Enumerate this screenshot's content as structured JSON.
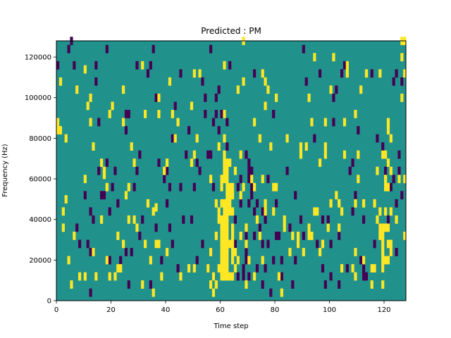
{
  "chart_data": {
    "type": "heatmap",
    "title": "Predicted : PM",
    "xlabel": "Time step",
    "ylabel": "Frequency (Hz)",
    "xlim": [
      0,
      128
    ],
    "ylim": [
      0,
      128000
    ],
    "x_ticks": [
      0,
      20,
      40,
      60,
      80,
      100,
      120
    ],
    "y_ticks": [
      0,
      20000,
      40000,
      60000,
      80000,
      100000,
      120000
    ],
    "grid": false,
    "cell_width": 1,
    "cell_height": 4000,
    "colors": {
      "background": "#21918c",
      "low": "#440154",
      "high": "#fde725"
    },
    "cells_high": [
      [
        0,
        86
      ],
      [
        0,
        82
      ],
      [
        1,
        82
      ],
      [
        1,
        106
      ],
      [
        2,
        34
      ],
      [
        2,
        42
      ],
      [
        3,
        48
      ],
      [
        3,
        78
      ],
      [
        4,
        18
      ],
      [
        5,
        6
      ],
      [
        6,
        30
      ],
      [
        7,
        102
      ],
      [
        8,
        10
      ],
      [
        10,
        10
      ],
      [
        10,
        112
      ],
      [
        10,
        58
      ],
      [
        11,
        94
      ],
      [
        12,
        98
      ],
      [
        12,
        86
      ],
      [
        13,
        74
      ],
      [
        13,
        22
      ],
      [
        14,
        10
      ],
      [
        16,
        38
      ],
      [
        16,
        66
      ],
      [
        17,
        60
      ],
      [
        17,
        62
      ],
      [
        18,
        54
      ],
      [
        18,
        18
      ],
      [
        19,
        10
      ],
      [
        19,
        90
      ],
      [
        20,
        94
      ],
      [
        21,
        10
      ],
      [
        22,
        14
      ],
      [
        22,
        30
      ],
      [
        23,
        14
      ],
      [
        24,
        102
      ],
      [
        24,
        86
      ],
      [
        24,
        26
      ],
      [
        25,
        50
      ],
      [
        26,
        38
      ],
      [
        26,
        54
      ],
      [
        27,
        74
      ],
      [
        28,
        66
      ],
      [
        28,
        38
      ],
      [
        29,
        34
      ],
      [
        31,
        6
      ],
      [
        31,
        114
      ],
      [
        32,
        26
      ],
      [
        32,
        90
      ],
      [
        33,
        46
      ],
      [
        34,
        18
      ],
      [
        35,
        2
      ],
      [
        35,
        42
      ],
      [
        36,
        26
      ],
      [
        36,
        44
      ],
      [
        37,
        90
      ],
      [
        37,
        26
      ],
      [
        37,
        98
      ],
      [
        38,
        10
      ],
      [
        39,
        62
      ],
      [
        40,
        66
      ],
      [
        40,
        22
      ],
      [
        41,
        106
      ],
      [
        42,
        90
      ],
      [
        43,
        78
      ],
      [
        44,
        86
      ],
      [
        45,
        10
      ],
      [
        48,
        14
      ],
      [
        49,
        66
      ],
      [
        49,
        94
      ],
      [
        50,
        110
      ],
      [
        50,
        70
      ],
      [
        50,
        14
      ],
      [
        51,
        78
      ],
      [
        52,
        110
      ],
      [
        55,
        14
      ],
      [
        56,
        58
      ],
      [
        56,
        22
      ],
      [
        56,
        6
      ],
      [
        57,
        2
      ],
      [
        57,
        10
      ],
      [
        58,
        30
      ],
      [
        58,
        6
      ],
      [
        58,
        46
      ],
      [
        59,
        14
      ],
      [
        59,
        74
      ],
      [
        59,
        42
      ],
      [
        59,
        38
      ],
      [
        60,
        34
      ],
      [
        60,
        46
      ],
      [
        60,
        54
      ],
      [
        60,
        58
      ],
      [
        60,
        38
      ],
      [
        60,
        18
      ],
      [
        60,
        14
      ],
      [
        60,
        10
      ],
      [
        60,
        22
      ],
      [
        60,
        26
      ],
      [
        60,
        30
      ],
      [
        61,
        34
      ],
      [
        61,
        38
      ],
      [
        61,
        42
      ],
      [
        61,
        46
      ],
      [
        61,
        58
      ],
      [
        61,
        62
      ],
      [
        61,
        66
      ],
      [
        61,
        70
      ],
      [
        61,
        78
      ],
      [
        61,
        90
      ],
      [
        61,
        114
      ],
      [
        61,
        10
      ],
      [
        61,
        14
      ],
      [
        61,
        18
      ],
      [
        61,
        22
      ],
      [
        61,
        26
      ],
      [
        61,
        30
      ],
      [
        62,
        50
      ],
      [
        62,
        54
      ],
      [
        62,
        58
      ],
      [
        62,
        62
      ],
      [
        62,
        66
      ],
      [
        62,
        10
      ],
      [
        62,
        14
      ],
      [
        62,
        18
      ],
      [
        62,
        22
      ],
      [
        62,
        26
      ],
      [
        62,
        30
      ],
      [
        62,
        34
      ],
      [
        62,
        38
      ],
      [
        62,
        42
      ],
      [
        62,
        46
      ],
      [
        63,
        50
      ],
      [
        63,
        54
      ],
      [
        63,
        66
      ],
      [
        63,
        10
      ],
      [
        63,
        26
      ],
      [
        63,
        42
      ],
      [
        63,
        46
      ],
      [
        64,
        10
      ],
      [
        64,
        18
      ],
      [
        64,
        22
      ],
      [
        64,
        26
      ],
      [
        64,
        30
      ],
      [
        64,
        42
      ],
      [
        64,
        50
      ],
      [
        64,
        54
      ],
      [
        64,
        34
      ],
      [
        65,
        14
      ],
      [
        65,
        22
      ],
      [
        65,
        62
      ],
      [
        66,
        18
      ],
      [
        66,
        102
      ],
      [
        67,
        30
      ],
      [
        67,
        50
      ],
      [
        67,
        70
      ],
      [
        68,
        126
      ],
      [
        68,
        106
      ],
      [
        68,
        54
      ],
      [
        69,
        6
      ],
      [
        69,
        26
      ],
      [
        69,
        34
      ],
      [
        70,
        18
      ],
      [
        71,
        58
      ],
      [
        72,
        86
      ],
      [
        72,
        10
      ],
      [
        72,
        54
      ],
      [
        73,
        38
      ],
      [
        74,
        30
      ],
      [
        74,
        78
      ],
      [
        75,
        58
      ],
      [
        75,
        18
      ],
      [
        75,
        110
      ],
      [
        76,
        106
      ],
      [
        76,
        94
      ],
      [
        76,
        46
      ],
      [
        76,
        42
      ],
      [
        77,
        102
      ],
      [
        78,
        74
      ],
      [
        79,
        54
      ],
      [
        79,
        42
      ],
      [
        80,
        54
      ],
      [
        80,
        98
      ],
      [
        81,
        10
      ],
      [
        82,
        2
      ],
      [
        83,
        34
      ],
      [
        83,
        38
      ],
      [
        84,
        78
      ],
      [
        85,
        22
      ],
      [
        86,
        30
      ],
      [
        88,
        30
      ],
      [
        88,
        26
      ],
      [
        89,
        70
      ],
      [
        89,
        74
      ],
      [
        90,
        22
      ],
      [
        91,
        74
      ],
      [
        92,
        98
      ],
      [
        92,
        34
      ],
      [
        92,
        30
      ],
      [
        93,
        30
      ],
      [
        93,
        86
      ],
      [
        94,
        42
      ],
      [
        94,
        118
      ],
      [
        95,
        42
      ],
      [
        96,
        66
      ],
      [
        96,
        22
      ],
      [
        97,
        26
      ],
      [
        98,
        86
      ],
      [
        98,
        70
      ],
      [
        98,
        74
      ],
      [
        99,
        34
      ],
      [
        100,
        102
      ],
      [
        100,
        46
      ],
      [
        101,
        118
      ],
      [
        102,
        50
      ],
      [
        103,
        46
      ],
      [
        103,
        34
      ],
      [
        104,
        14
      ],
      [
        104,
        42
      ],
      [
        105,
        86
      ],
      [
        105,
        70
      ],
      [
        106,
        114
      ],
      [
        106,
        110
      ],
      [
        108,
        14
      ],
      [
        109,
        90
      ],
      [
        109,
        10
      ],
      [
        109,
        46
      ],
      [
        109,
        22
      ],
      [
        110,
        70
      ],
      [
        110,
        58
      ],
      [
        111,
        102
      ],
      [
        112,
        46
      ],
      [
        112,
        18
      ],
      [
        113,
        110
      ],
      [
        115,
        6
      ],
      [
        115,
        14
      ],
      [
        116,
        14
      ],
      [
        116,
        46
      ],
      [
        117,
        38
      ],
      [
        117,
        62
      ],
      [
        118,
        30
      ],
      [
        118,
        42
      ],
      [
        118,
        34
      ],
      [
        118,
        110
      ],
      [
        119,
        6
      ],
      [
        119,
        14
      ],
      [
        119,
        18
      ],
      [
        119,
        22
      ],
      [
        119,
        26
      ],
      [
        119,
        30
      ],
      [
        119,
        34
      ],
      [
        119,
        70
      ],
      [
        120,
        70
      ],
      [
        120,
        54
      ],
      [
        120,
        42
      ],
      [
        120,
        34
      ],
      [
        120,
        18
      ],
      [
        120,
        58
      ],
      [
        121,
        86
      ],
      [
        121,
        54
      ],
      [
        121,
        82
      ],
      [
        121,
        66
      ],
      [
        121,
        18
      ],
      [
        121,
        26
      ],
      [
        121,
        34
      ],
      [
        122,
        22
      ],
      [
        122,
        26
      ],
      [
        122,
        42
      ],
      [
        122,
        62
      ],
      [
        122,
        78
      ],
      [
        124,
        38
      ],
      [
        125,
        58
      ],
      [
        126,
        118
      ],
      [
        126,
        126
      ],
      [
        126,
        98
      ],
      [
        127,
        126
      ],
      [
        127,
        110
      ],
      [
        127,
        30
      ],
      [
        127,
        58
      ]
    ],
    "cells_low": [
      [
        0,
        114
      ],
      [
        4,
        122
      ],
      [
        5,
        126
      ],
      [
        6,
        114
      ],
      [
        7,
        34
      ],
      [
        8,
        26
      ],
      [
        10,
        50
      ],
      [
        11,
        26
      ],
      [
        12,
        22
      ],
      [
        12,
        2
      ],
      [
        12,
        42
      ],
      [
        13,
        38
      ],
      [
        14,
        114
      ],
      [
        14,
        106
      ],
      [
        15,
        86
      ],
      [
        15,
        62
      ],
      [
        16,
        50
      ],
      [
        17,
        50
      ],
      [
        18,
        122
      ],
      [
        18,
        66
      ],
      [
        19,
        42
      ],
      [
        19,
        18
      ],
      [
        20,
        54
      ],
      [
        21,
        62
      ],
      [
        22,
        46
      ],
      [
        23,
        18
      ],
      [
        25,
        82
      ],
      [
        25,
        90
      ],
      [
        26,
        90
      ],
      [
        26,
        6
      ],
      [
        27,
        22
      ],
      [
        28,
        54
      ],
      [
        29,
        114
      ],
      [
        29,
        62
      ],
      [
        30,
        70
      ],
      [
        30,
        30
      ],
      [
        31,
        38
      ],
      [
        33,
        110
      ],
      [
        34,
        6
      ],
      [
        34,
        114
      ],
      [
        35,
        122
      ],
      [
        36,
        34
      ],
      [
        36,
        26
      ],
      [
        37,
        66
      ],
      [
        37,
        98
      ],
      [
        38,
        18
      ],
      [
        39,
        58
      ],
      [
        40,
        46
      ],
      [
        40,
        62
      ],
      [
        41,
        54
      ],
      [
        41,
        34
      ],
      [
        42,
        26
      ],
      [
        42,
        78
      ],
      [
        43,
        94
      ],
      [
        44,
        14
      ],
      [
        45,
        110
      ],
      [
        45,
        54
      ],
      [
        46,
        38
      ],
      [
        47,
        70
      ],
      [
        48,
        82
      ],
      [
        49,
        38
      ],
      [
        50,
        54
      ],
      [
        51,
        18
      ],
      [
        52,
        62
      ],
      [
        53,
        26
      ],
      [
        53,
        106
      ],
      [
        54,
        90
      ],
      [
        54,
        98
      ],
      [
        55,
        14
      ],
      [
        55,
        70
      ],
      [
        56,
        122
      ],
      [
        56,
        70
      ],
      [
        56,
        22
      ],
      [
        57,
        10
      ],
      [
        57,
        54
      ],
      [
        57,
        86
      ],
      [
        58,
        90
      ],
      [
        58,
        98
      ],
      [
        59,
        82
      ],
      [
        59,
        102
      ],
      [
        60,
        90
      ],
      [
        61,
        18
      ],
      [
        62,
        86
      ],
      [
        62,
        74
      ],
      [
        63,
        42
      ],
      [
        63,
        114
      ],
      [
        64,
        10
      ],
      [
        64,
        22
      ],
      [
        65,
        38
      ],
      [
        65,
        26
      ],
      [
        66,
        10
      ],
      [
        66,
        54
      ],
      [
        67,
        46
      ],
      [
        67,
        58
      ],
      [
        68,
        10
      ],
      [
        68,
        14
      ],
      [
        69,
        18
      ],
      [
        69,
        22
      ],
      [
        69,
        30
      ],
      [
        69,
        70
      ],
      [
        70,
        10
      ],
      [
        70,
        58
      ],
      [
        70,
        62
      ],
      [
        70,
        66
      ],
      [
        70,
        46
      ],
      [
        71,
        50
      ],
      [
        71,
        54
      ],
      [
        71,
        62
      ],
      [
        72,
        30
      ],
      [
        72,
        42
      ],
      [
        72,
        110
      ],
      [
        73,
        14
      ],
      [
        73,
        46
      ],
      [
        74,
        34
      ],
      [
        75,
        42
      ],
      [
        75,
        6
      ],
      [
        75,
        26
      ],
      [
        76,
        14
      ],
      [
        76,
        38
      ],
      [
        77,
        58
      ],
      [
        77,
        26
      ],
      [
        78,
        2
      ],
      [
        79,
        90
      ],
      [
        80,
        30
      ],
      [
        80,
        46
      ],
      [
        81,
        30
      ],
      [
        82,
        10
      ],
      [
        82,
        18
      ],
      [
        84,
        62
      ],
      [
        85,
        34
      ],
      [
        86,
        6
      ],
      [
        87,
        50
      ],
      [
        88,
        26
      ],
      [
        89,
        38
      ],
      [
        90,
        122
      ],
      [
        90,
        30
      ],
      [
        91,
        106
      ],
      [
        92,
        34
      ],
      [
        94,
        78
      ],
      [
        95,
        26
      ],
      [
        96,
        110
      ],
      [
        97,
        14
      ],
      [
        97,
        38
      ],
      [
        98,
        6
      ],
      [
        99,
        38
      ],
      [
        100,
        10
      ],
      [
        101,
        98
      ],
      [
        101,
        86
      ],
      [
        102,
        102
      ],
      [
        103,
        30
      ],
      [
        103,
        6
      ],
      [
        104,
        110
      ],
      [
        105,
        114
      ],
      [
        106,
        14
      ],
      [
        107,
        62
      ],
      [
        108,
        42
      ],
      [
        108,
        66
      ],
      [
        109,
        50
      ],
      [
        110,
        82
      ],
      [
        111,
        18
      ],
      [
        112,
        38
      ],
      [
        112,
        14
      ],
      [
        113,
        10
      ],
      [
        115,
        110
      ],
      [
        116,
        26
      ],
      [
        117,
        78
      ],
      [
        118,
        34
      ],
      [
        119,
        14
      ],
      [
        120,
        62
      ],
      [
        121,
        38
      ],
      [
        122,
        54
      ],
      [
        122,
        22
      ],
      [
        123,
        58
      ],
      [
        124,
        46
      ],
      [
        124,
        22
      ],
      [
        125,
        62
      ],
      [
        125,
        70
      ],
      [
        126,
        106
      ],
      [
        126,
        50
      ],
      [
        127,
        30
      ],
      [
        124,
        110
      ],
      [
        123,
        106
      ],
      [
        112,
        10
      ],
      [
        87,
        18
      ],
      [
        36,
        98
      ],
      [
        25,
        22
      ],
      [
        51,
        66
      ],
      [
        79,
        18
      ],
      [
        100,
        26
      ],
      [
        119,
        74
      ]
    ]
  }
}
